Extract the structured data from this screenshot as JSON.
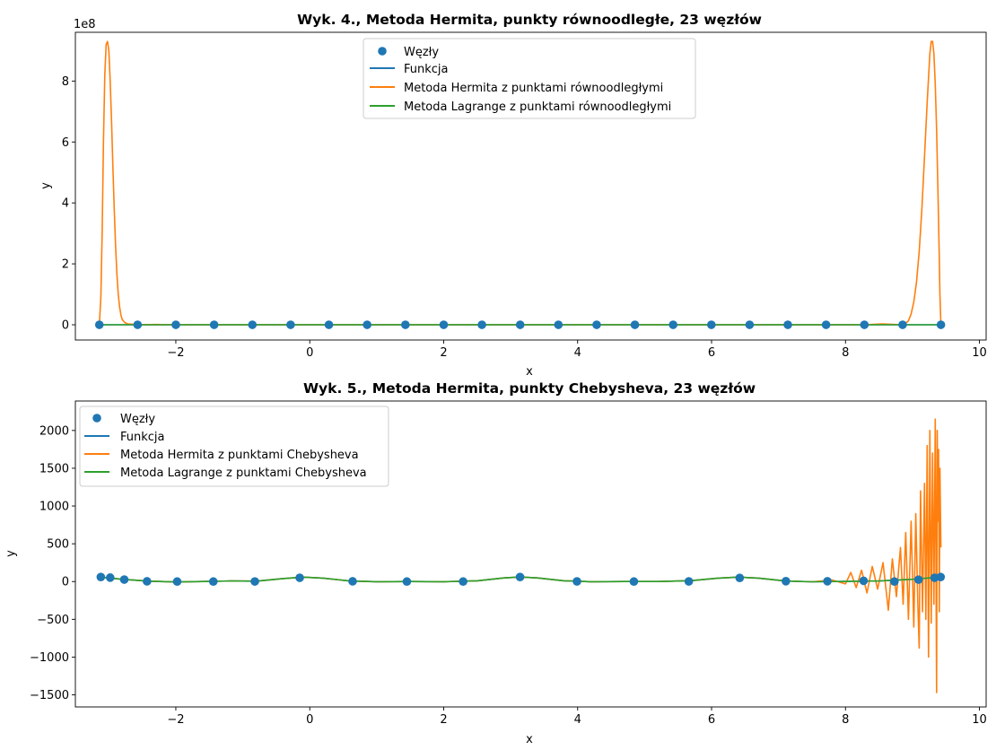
{
  "chart_data": [
    {
      "type": "line",
      "title": "Wyk. 4., Metoda Hermita, punkty równoodległe, 23 węzłów",
      "xlabel": "x",
      "ylabel": "y",
      "xlim": [
        -3.5,
        10.1
      ],
      "ylim": [
        -0.5,
        9.6
      ],
      "y_scale_label": "1e8",
      "xticks": [
        -2,
        0,
        2,
        4,
        6,
        8,
        10
      ],
      "xtick_labels": [
        "−2",
        "0",
        "2",
        "4",
        "6",
        "8",
        "10"
      ],
      "yticks": [
        0,
        2,
        4,
        6,
        8
      ],
      "ytick_labels": [
        "0",
        "2",
        "4",
        "6",
        "8"
      ],
      "legend": [
        "Węzły",
        "Funkcja",
        "Metoda Hermita z punktami równoodległymi",
        "Metoda Lagrange z punktami równoodległymi"
      ],
      "legend_position": "top-center",
      "colors": [
        "#1f77b4",
        "#1f77b4",
        "#ff7f0e",
        "#2ca02c"
      ],
      "nodes": {
        "x": [
          -3.142,
          -2.571,
          -2.0,
          -1.428,
          -0.857,
          -0.286,
          0.286,
          0.857,
          1.428,
          2.0,
          2.571,
          3.142,
          3.713,
          4.284,
          4.855,
          5.426,
          5.997,
          6.568,
          7.139,
          7.71,
          8.282,
          8.853,
          9.425
        ],
        "y": [
          0,
          0,
          0,
          0,
          0,
          0,
          0,
          0,
          0,
          0,
          0,
          0,
          0,
          0,
          0,
          0,
          0,
          0,
          0,
          0,
          0,
          0,
          0
        ]
      },
      "series": [
        {
          "name": "Funkcja",
          "x": [
            -3.142,
            9.425
          ],
          "y": [
            0,
            0
          ]
        },
        {
          "name": "Metoda Hermita z punktami równoodległymi",
          "x": [
            -3.142,
            -3.12,
            -3.1,
            -3.08,
            -3.06,
            -3.04,
            -3.02,
            -3.0,
            -2.98,
            -2.96,
            -2.94,
            -2.92,
            -2.9,
            -2.88,
            -2.86,
            -2.84,
            -2.82,
            -2.8,
            -2.76,
            -2.72,
            -2.66,
            -2.571,
            -2.3,
            -2.0,
            0,
            3.142,
            6.0,
            8.282,
            8.55,
            8.853,
            8.9,
            8.94,
            8.98,
            9.02,
            9.06,
            9.1,
            9.14,
            9.18,
            9.22,
            9.26,
            9.28,
            9.3,
            9.32,
            9.34,
            9.36,
            9.38,
            9.4,
            9.41,
            9.425
          ],
          "y": [
            0,
            0.9,
            3.1,
            6.0,
            8.2,
            9.2,
            9.3,
            9.0,
            8.0,
            6.7,
            5.2,
            3.8,
            2.6,
            1.65,
            1.0,
            0.58,
            0.32,
            0.17,
            0.07,
            0.03,
            0.02,
            0,
            0.01,
            0,
            0,
            0,
            0,
            0,
            0.03,
            0,
            0.05,
            0.13,
            0.35,
            0.75,
            1.4,
            2.4,
            3.8,
            5.5,
            7.3,
            8.9,
            9.3,
            9.3,
            8.9,
            7.9,
            6.4,
            4.4,
            2.2,
            1.0,
            0
          ]
        },
        {
          "name": "Metoda Lagrange z punktami równoodległymi",
          "x": [
            -3.142,
            9.425
          ],
          "y": [
            0,
            0
          ]
        }
      ]
    },
    {
      "type": "line",
      "title": "Wyk. 5., Metoda Hermita, punkty Chebysheva, 23 węzłów",
      "xlabel": "x",
      "ylabel": "y",
      "xlim": [
        -3.5,
        10.1
      ],
      "ylim": [
        -1660,
        2390
      ],
      "xticks": [
        -2,
        0,
        2,
        4,
        6,
        8,
        10
      ],
      "xtick_labels": [
        "−2",
        "0",
        "2",
        "4",
        "6",
        "8",
        "10"
      ],
      "yticks": [
        -1500,
        -1000,
        -500,
        0,
        500,
        1000,
        1500,
        2000
      ],
      "ytick_labels": [
        "−1500",
        "−1000",
        "−500",
        "0",
        "500",
        "1000",
        "1500",
        "2000"
      ],
      "legend": [
        "Węzły",
        "Funkcja",
        "Metoda Hermita z punktami Chebysheva",
        "Metoda Lagrange z punktami Chebysheva"
      ],
      "legend_position": "top-left",
      "colors": [
        "#1f77b4",
        "#1f77b4",
        "#ff7f0e",
        "#2ca02c"
      ],
      "nodes": {
        "x": [
          -3.12,
          -2.98,
          -2.77,
          -2.43,
          -1.98,
          -1.44,
          -0.82,
          -0.15,
          0.64,
          1.45,
          2.29,
          3.14,
          3.99,
          4.84,
          5.66,
          6.42,
          7.11,
          7.73,
          8.27,
          8.73,
          9.09,
          9.33,
          9.42
        ],
        "y": [
          60,
          52,
          26,
          3,
          0,
          0,
          1,
          50,
          3,
          0,
          0,
          60,
          2,
          0,
          2,
          48,
          5,
          4,
          10,
          0,
          25,
          50,
          60
        ]
      },
      "series": [
        {
          "name": "Funkcja",
          "x": [
            -3.142,
            -2.8,
            -2.4,
            -2.0,
            -1.6,
            -1.2,
            -0.8,
            -0.4,
            -0.1,
            0.2,
            0.6,
            1.0,
            1.5,
            2.0,
            2.5,
            2.9,
            3.142,
            3.4,
            3.8,
            4.2,
            4.7,
            5.2,
            5.7,
            6.1,
            6.4,
            6.7,
            7.1,
            7.5,
            8.0,
            8.5,
            9.0,
            9.425
          ],
          "y": [
            60,
            30,
            5,
            -5,
            0,
            8,
            5,
            40,
            58,
            45,
            8,
            -2,
            0,
            -2,
            10,
            48,
            60,
            48,
            10,
            -2,
            0,
            0,
            12,
            45,
            58,
            45,
            8,
            -3,
            2,
            8,
            30,
            60
          ]
        },
        {
          "name": "Metoda Hermita z punktami Chebysheva",
          "x": [
            -3.142,
            -2.8,
            -2.4,
            -2.0,
            -1.6,
            -1.2,
            -0.8,
            -0.4,
            -0.1,
            0.2,
            0.6,
            1.0,
            1.5,
            2.0,
            2.5,
            2.9,
            3.142,
            3.4,
            3.8,
            4.2,
            4.7,
            5.2,
            5.7,
            6.1,
            6.4,
            6.7,
            7.1,
            7.5,
            7.8,
            8.0,
            8.08,
            8.16,
            8.24,
            8.32,
            8.4,
            8.48,
            8.56,
            8.64,
            8.7,
            8.76,
            8.82,
            8.86,
            8.9,
            8.94,
            8.98,
            9.02,
            9.05,
            9.08,
            9.1,
            9.12,
            9.15,
            9.18,
            9.2,
            9.22,
            9.24,
            9.26,
            9.28,
            9.3,
            9.32,
            9.34,
            9.36,
            9.37,
            9.38,
            9.39,
            9.4,
            9.41,
            9.425
          ],
          "y": [
            60,
            30,
            5,
            -5,
            0,
            8,
            5,
            40,
            58,
            45,
            8,
            -2,
            0,
            -2,
            10,
            48,
            60,
            48,
            10,
            -2,
            0,
            0,
            12,
            45,
            58,
            45,
            8,
            -3,
            20,
            -30,
            120,
            -80,
            150,
            -150,
            200,
            -100,
            250,
            -380,
            300,
            -200,
            450,
            -300,
            650,
            -500,
            800,
            -600,
            900,
            -300,
            -880,
            1200,
            -400,
            1300,
            -500,
            1800,
            -1000,
            2000,
            -550,
            1700,
            -300,
            2150,
            -1470,
            2000,
            800,
            1750,
            -400,
            1500,
            450
          ]
        },
        {
          "name": "Metoda Lagrange z punktami Chebysheva",
          "x": [
            -3.142,
            -2.8,
            -2.4,
            -2.0,
            -1.6,
            -1.2,
            -0.8,
            -0.4,
            -0.1,
            0.2,
            0.6,
            1.0,
            1.5,
            2.0,
            2.5,
            2.9,
            3.142,
            3.4,
            3.8,
            4.2,
            4.7,
            5.2,
            5.7,
            6.1,
            6.4,
            6.7,
            7.1,
            7.5,
            8.0,
            8.5,
            9.0,
            9.425
          ],
          "y": [
            60,
            30,
            5,
            -5,
            0,
            8,
            5,
            40,
            58,
            45,
            8,
            -2,
            0,
            -2,
            10,
            48,
            60,
            48,
            10,
            -2,
            0,
            0,
            12,
            45,
            58,
            45,
            8,
            -3,
            2,
            8,
            30,
            60
          ]
        }
      ]
    }
  ]
}
